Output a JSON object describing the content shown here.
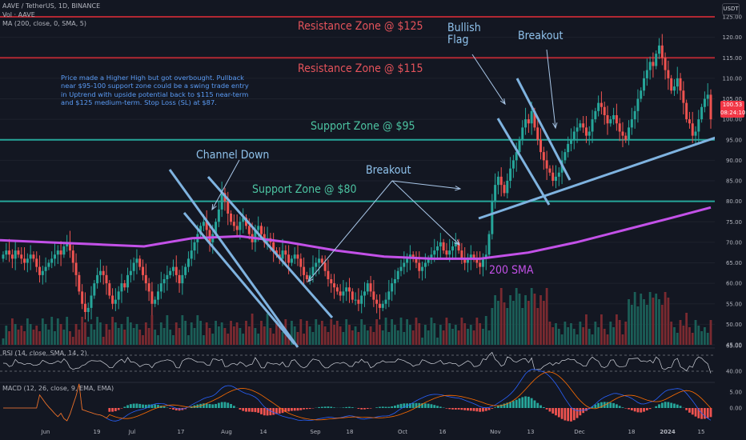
{
  "header": {
    "symbol_line": "AAVE / TetherUS, 1D, BINANCE",
    "volume_line": "Vol · AAVE",
    "ma_line": "MA (200, close, 0, SMA, 5)",
    "currency_button": "USDT"
  },
  "annotations": {
    "resistance_125": "Resistance Zone @ $125",
    "resistance_115": "Resistance Zone @ $115",
    "support_95": "Support Zone @ $95",
    "support_80": "Support Zone @ $80",
    "channel_down": "Channel Down",
    "breakout_1": "Breakout",
    "bullish_flag": "Bullish\nFlag",
    "breakout_2": "Breakout",
    "sma_label": "200 SMA",
    "note": "Price made a Higher High but got overbought. Pullback\nnear $95-100 support zone could be a swing trade entry\nin Uptrend with upside potential back to $115 near-term\nand $125 medium-term. Stop Loss (SL) at $87."
  },
  "indicators": {
    "rsi_label": "RSI (14, close, SMA, 14, 2)",
    "macd_label": "MACD (12, 26, close, 9, EMA, EMA)"
  },
  "price_badge": {
    "price": "100.53",
    "countdown": "08:24:10"
  },
  "colors": {
    "background": "#131722",
    "up": "#26a69a",
    "down": "#ef5350",
    "resistance_line": "#b22833",
    "support_line": "#26a69a",
    "sma": "#c351e8",
    "channel_lines": "#7fb3e0"
  },
  "chart_data": {
    "type": "candlestick",
    "symbol": "AAVE / TetherUS",
    "interval": "1D",
    "exchange": "BINANCE",
    "price_axis_ticks": [
      125,
      120,
      115,
      110,
      105,
      100,
      95,
      90,
      85,
      80,
      75,
      70,
      65,
      60,
      55,
      50,
      45
    ],
    "time_axis_ticks": [
      "Jun",
      "19",
      "Jul",
      "17",
      "Aug",
      "14",
      "Sep",
      "18",
      "Oct",
      "16",
      "Nov",
      "13",
      "Dec",
      "18",
      "2024",
      "15"
    ],
    "last_price": 100.53,
    "horizontal_levels": [
      {
        "label": "Resistance Zone @ $125",
        "value": 125,
        "kind": "resistance"
      },
      {
        "label": "Resistance Zone @ $115",
        "value": 115,
        "kind": "resistance"
      },
      {
        "label": "Support Zone @ $95",
        "value": 95,
        "kind": "support"
      },
      {
        "label": "Support Zone @ $80",
        "value": 80,
        "kind": "support"
      }
    ],
    "closes": [
      67,
      68,
      67,
      66,
      68,
      67,
      66,
      65,
      66,
      67,
      66,
      64,
      62,
      63,
      64,
      65,
      66,
      67,
      68,
      67,
      69,
      70,
      68,
      65,
      62,
      58,
      55,
      53,
      54,
      57,
      60,
      62,
      63,
      62,
      60,
      57,
      55,
      56,
      58,
      60,
      59,
      62,
      63,
      65,
      66,
      64,
      62,
      60,
      58,
      55,
      56,
      58,
      60,
      61,
      62,
      63,
      64,
      62,
      60,
      62,
      64,
      66,
      68,
      70,
      72,
      74,
      75,
      73,
      70,
      72,
      75,
      78,
      82,
      80,
      77,
      75,
      74,
      73,
      75,
      76,
      74,
      72,
      70,
      73,
      74,
      72,
      70,
      71,
      70,
      68,
      67,
      66,
      68,
      67,
      65,
      66,
      67,
      66,
      64,
      62,
      61,
      62,
      64,
      65,
      66,
      65,
      63,
      61,
      60,
      59,
      58,
      57,
      58,
      59,
      58,
      56,
      56,
      55,
      57,
      58,
      60,
      58,
      56,
      55,
      54,
      55,
      56,
      58,
      60,
      61,
      63,
      64,
      65,
      66,
      67,
      66,
      65,
      63,
      64,
      65,
      66,
      67,
      68,
      69,
      70,
      68,
      67,
      68,
      69,
      70,
      68,
      66,
      65,
      66,
      67,
      66,
      65,
      64,
      66,
      67,
      72,
      80,
      84,
      86,
      84,
      82,
      85,
      88,
      90,
      92,
      95,
      98,
      100,
      99,
      102,
      98,
      95,
      92,
      90,
      88,
      87,
      85,
      86,
      87,
      90,
      92,
      94,
      95,
      97,
      98,
      99,
      98,
      96,
      97,
      100,
      102,
      104,
      103,
      101,
      99,
      100,
      101,
      99,
      97,
      96,
      95,
      98,
      100,
      102,
      105,
      107,
      110,
      112,
      114,
      113,
      116,
      118,
      115,
      112,
      110,
      107,
      108,
      110,
      107,
      104,
      100,
      99,
      96,
      97,
      100,
      103,
      105,
      106,
      100
    ],
    "volume_note": "Volume histogram in the bottom of the price pane",
    "sma200": "Purple 200-day simple moving average, rising from ~67 to ~78",
    "rsi_range": [
      40,
      65
    ],
    "macd_ticks": [
      5.0,
      0.0
    ]
  }
}
